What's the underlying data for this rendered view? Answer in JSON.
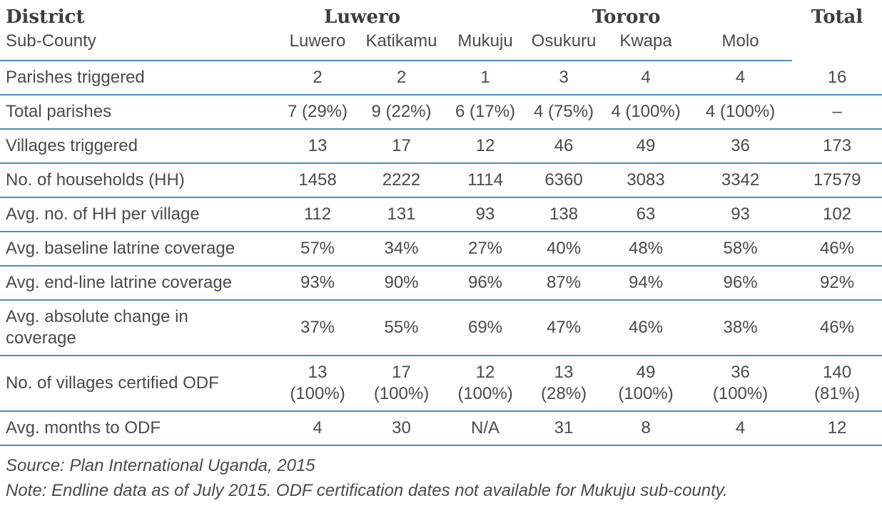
{
  "meta": {
    "accent_blue": "#4e8cb9",
    "text_color": "#4a4a4a"
  },
  "table": {
    "district_header": {
      "label": "District",
      "luwero": "Luwero",
      "tororo": "Tororo",
      "total": "Total"
    },
    "subcounty_header": {
      "label": "Sub-County",
      "columns": [
        "Luwero",
        "Katikamu",
        "Mukuju",
        "Osukuru",
        "Kwapa",
        "Molo"
      ],
      "total_spacer": ""
    },
    "rows": [
      {
        "label": "Parishes triggered",
        "values": [
          "2",
          "2",
          "1",
          "3",
          "4",
          "4",
          "16"
        ]
      },
      {
        "label": "Total parishes",
        "values": [
          "7 (29%)",
          "9 (22%)",
          "6 (17%)",
          "4 (75%)",
          "4 (100%)",
          "4 (100%)",
          "–"
        ]
      },
      {
        "label": "Villages triggered",
        "values": [
          "13",
          "17",
          "12",
          "46",
          "49",
          "36",
          "173"
        ]
      },
      {
        "label": "No. of households (HH)",
        "values": [
          "1458",
          "2222",
          "1114",
          "6360",
          "3083",
          "3342",
          "17579"
        ]
      },
      {
        "label": "Avg. no. of HH per village",
        "values": [
          "112",
          "131",
          "93",
          "138",
          "63",
          "93",
          "102"
        ]
      },
      {
        "label": "Avg. baseline latrine coverage",
        "values": [
          "57%",
          "34%",
          "27%",
          "40%",
          "48%",
          "58%",
          "46%"
        ]
      },
      {
        "label": "Avg. end-line latrine coverage",
        "values": [
          "93%",
          "90%",
          "96%",
          "87%",
          "94%",
          "96%",
          "92%"
        ]
      },
      {
        "label": "Avg. absolute change in\ncoverage",
        "values": [
          "37%",
          "55%",
          "69%",
          "47%",
          "46%",
          "38%",
          "46%"
        ]
      },
      {
        "label": "No. of villages certified ODF",
        "values": [
          "13\n(100%)",
          "17\n(100%)",
          "12\n(100%)",
          "13\n(28%)",
          "49\n(100%)",
          "36\n(100%)",
          "140\n(81%)"
        ]
      },
      {
        "label": "Avg. months to ODF",
        "values": [
          "4",
          "30",
          "N/A",
          "31",
          "8",
          "4",
          "12"
        ]
      }
    ],
    "source": "Source: Plan International Uganda, 2015",
    "note": "Note: Endline data as of July 2015. ODF certification dates not available for Mukuju sub-county."
  }
}
